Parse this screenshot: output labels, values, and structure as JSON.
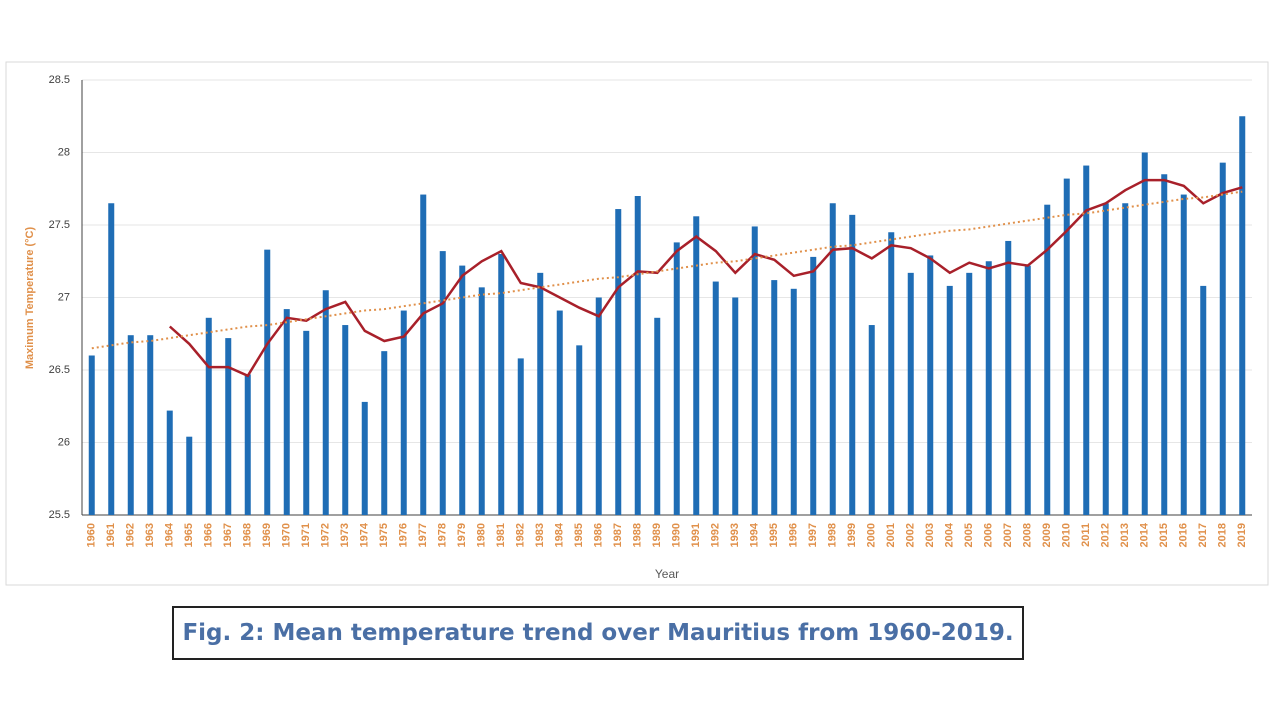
{
  "chart_data": {
    "type": "bar",
    "x_label": "Year",
    "y_label": "Maximum  Temperature (°C)",
    "caption": "Fig. 2: Mean temperature trend over Mauritius from 1960-2019.",
    "categories": [
      "1960",
      "1961",
      "1962",
      "1963",
      "1964",
      "1965",
      "1966",
      "1967",
      "1968",
      "1969",
      "1970",
      "1971",
      "1972",
      "1973",
      "1974",
      "1975",
      "1976",
      "1977",
      "1978",
      "1979",
      "1980",
      "1981",
      "1982",
      "1983",
      "1984",
      "1985",
      "1986",
      "1987",
      "1988",
      "1989",
      "1990",
      "1991",
      "1992",
      "1993",
      "1994",
      "1995",
      "1996",
      "1997",
      "1998",
      "1999",
      "2000",
      "2001",
      "2002",
      "2003",
      "2004",
      "2005",
      "2006",
      "2007",
      "2008",
      "2009",
      "2010",
      "2011",
      "2012",
      "2013",
      "2014",
      "2015",
      "2016",
      "2017",
      "2018",
      "2019"
    ],
    "series": [
      {
        "type": "bar",
        "color": "#1f6db5",
        "values": [
          26.6,
          27.65,
          26.74,
          26.74,
          26.22,
          26.04,
          26.86,
          26.72,
          26.47,
          27.33,
          26.92,
          26.77,
          27.05,
          26.81,
          26.28,
          26.63,
          26.91,
          27.71,
          27.32,
          27.22,
          27.07,
          27.3,
          26.58,
          27.17,
          26.91,
          26.67,
          27.0,
          27.61,
          27.7,
          26.86,
          27.38,
          27.56,
          27.11,
          27.0,
          27.49,
          27.12,
          27.06,
          27.28,
          27.65,
          27.57,
          26.81,
          27.45,
          27.17,
          27.29,
          27.08,
          27.17,
          27.25,
          27.39,
          27.22,
          27.64,
          27.82,
          27.91,
          27.65,
          27.65,
          28.0,
          27.85,
          27.71,
          27.08,
          27.93,
          28.25
        ]
      },
      {
        "type": "line",
        "color": "#a8202a",
        "dash": false,
        "values": [
          null,
          null,
          null,
          null,
          26.8,
          26.68,
          26.52,
          26.52,
          26.46,
          26.68,
          26.86,
          26.84,
          26.92,
          26.97,
          26.77,
          26.7,
          26.73,
          26.89,
          26.96,
          27.15,
          27.25,
          27.32,
          27.1,
          27.07,
          27.0,
          26.93,
          26.87,
          27.07,
          27.18,
          27.17,
          27.32,
          27.42,
          27.32,
          27.17,
          27.3,
          27.26,
          27.15,
          27.18,
          27.33,
          27.34,
          27.27,
          27.36,
          27.34,
          27.27,
          27.17,
          27.24,
          27.2,
          27.24,
          27.22,
          27.33,
          27.46,
          27.6,
          27.65,
          27.74,
          27.81,
          27.81,
          27.77,
          27.65,
          27.72,
          27.76
        ]
      },
      {
        "type": "line",
        "color": "#e0904a",
        "dash": true,
        "values": [
          26.65,
          26.67,
          26.69,
          26.7,
          26.72,
          26.74,
          26.76,
          26.78,
          26.8,
          26.81,
          26.83,
          26.85,
          26.87,
          26.89,
          26.91,
          26.92,
          26.94,
          26.96,
          26.98,
          27.0,
          27.02,
          27.03,
          27.05,
          27.07,
          27.09,
          27.11,
          27.13,
          27.14,
          27.16,
          27.18,
          27.2,
          27.22,
          27.24,
          27.25,
          27.27,
          27.29,
          27.31,
          27.33,
          27.35,
          27.36,
          27.38,
          27.4,
          27.42,
          27.44,
          27.46,
          27.47,
          27.49,
          27.51,
          27.53,
          27.55,
          27.57,
          27.58,
          27.6,
          27.62,
          27.64,
          27.66,
          27.68,
          27.69,
          27.71,
          27.73
        ]
      }
    ],
    "ylim": [
      25.5,
      28.5
    ],
    "yticks": [
      25.5,
      26,
      26.5,
      27,
      27.5,
      28,
      28.5
    ],
    "grid": true
  }
}
